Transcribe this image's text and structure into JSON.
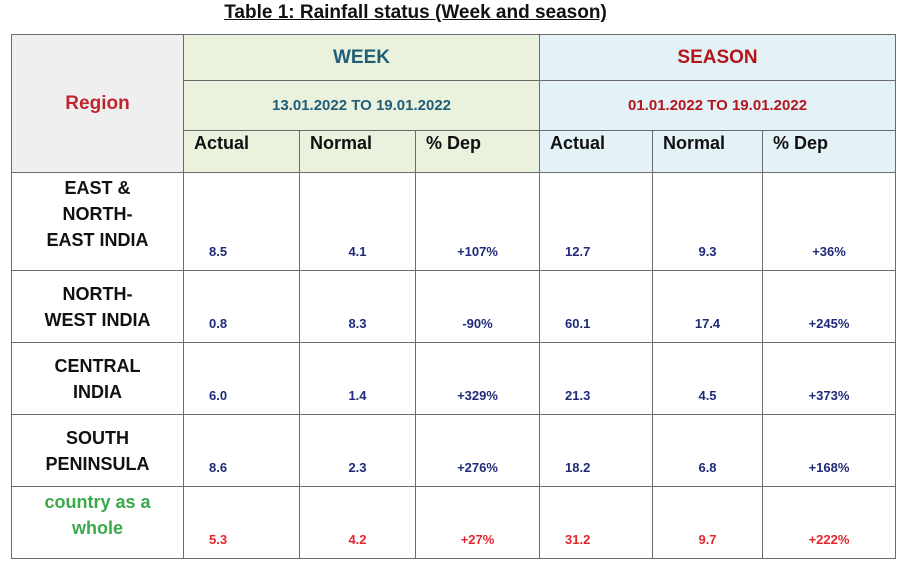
{
  "title": "Table 1: Rainfall status (Week and season)",
  "header": {
    "region": "Region",
    "week": {
      "label": "WEEK",
      "range": "13.01.2022 TO 19.01.2022"
    },
    "season": {
      "label": "SEASON",
      "range": "01.01.2022 TO 19.01.2022"
    },
    "columns": [
      "Actual",
      "Normal",
      "% Dep",
      "Actual",
      "Normal",
      "% Dep"
    ]
  },
  "rows": [
    {
      "region": [
        "EAST &",
        "NORTH-",
        "EAST INDIA"
      ],
      "week": [
        "8.5",
        "4.1",
        "+107%"
      ],
      "season": [
        "12.7",
        "9.3",
        "+36%"
      ]
    },
    {
      "region": [
        "NORTH-",
        "WEST INDIA"
      ],
      "week": [
        "0.8",
        "8.3",
        "-90%"
      ],
      "season": [
        "60.1",
        "17.4",
        "+245%"
      ]
    },
    {
      "region": [
        "CENTRAL",
        "INDIA"
      ],
      "week": [
        "6.0",
        "1.4",
        "+329%"
      ],
      "season": [
        "21.3",
        "4.5",
        "+373%"
      ]
    },
    {
      "region": [
        "SOUTH",
        "PENINSULA"
      ],
      "week": [
        "8.6",
        "2.3",
        "+276%"
      ],
      "season": [
        "18.2",
        "6.8",
        "+168%"
      ]
    },
    {
      "region": [
        "country as a",
        "whole"
      ],
      "week": [
        "5.3",
        "4.2",
        "+27%"
      ],
      "season": [
        "31.2",
        "9.7",
        "+222%"
      ]
    }
  ],
  "colors": {
    "region_header": "#c0262d",
    "week": "#1f5d78",
    "season": "#b3151b",
    "values": "#1f2a7a",
    "total_values": "#e3262d",
    "total_label": "#3aa94a",
    "week_bg": "#eaf1dc",
    "season_bg": "#e3f2f7"
  }
}
